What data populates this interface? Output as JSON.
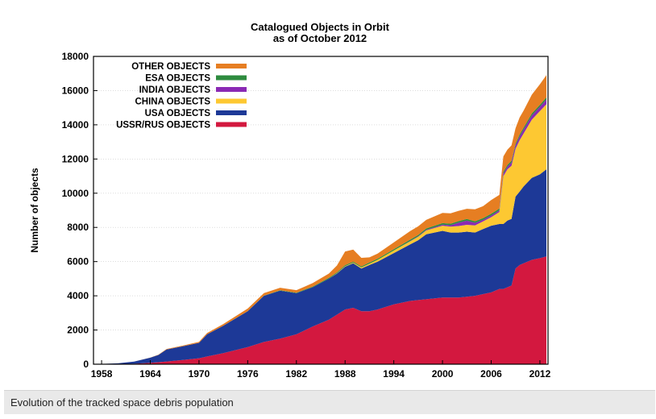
{
  "caption": "Evolution of the tracked space debris population",
  "chart_data": {
    "type": "area",
    "stacked": true,
    "title": "Catalogued Objects in Orbit",
    "subtitle": "as of October 2012",
    "xlabel": "",
    "ylabel": "Number of objects",
    "xlim": [
      1957,
      2013
    ],
    "ylim": [
      0,
      18000
    ],
    "x_ticks": [
      "1958",
      "1964",
      "1970",
      "1976",
      "1982",
      "1988",
      "1994",
      "2000",
      "2006",
      "2012"
    ],
    "y_ticks": [
      "0",
      "2000",
      "4000",
      "6000",
      "8000",
      "10000",
      "12000",
      "14000",
      "16000",
      "18000"
    ],
    "grid": true,
    "legend_position": "top-left",
    "x": [
      1957,
      1960,
      1962,
      1964,
      1965,
      1966,
      1968,
      1970,
      1971,
      1973,
      1976,
      1978,
      1980,
      1982,
      1984,
      1986,
      1987,
      1988,
      1989,
      1990,
      1991,
      1992,
      1994,
      1996,
      1997,
      1998,
      2000,
      2001,
      2002,
      2003,
      2004,
      2005,
      2006,
      2007,
      2007.5,
      2008,
      2008.5,
      2009,
      2009.5,
      2010,
      2011,
      2012,
      2012.8
    ],
    "series": [
      {
        "name": "USSR/RUS OBJECTS",
        "color": "#d3183f",
        "values": [
          0,
          10,
          30,
          80,
          120,
          160,
          250,
          350,
          450,
          650,
          1000,
          1300,
          1500,
          1750,
          2200,
          2600,
          2900,
          3200,
          3300,
          3100,
          3100,
          3200,
          3500,
          3700,
          3750,
          3800,
          3900,
          3900,
          3900,
          3950,
          4000,
          4100,
          4200,
          4400,
          4400,
          4500,
          4600,
          5600,
          5800,
          5900,
          6100,
          6200,
          6300
        ]
      },
      {
        "name": "USA OBJECTS",
        "color": "#1d3997",
        "values": [
          0,
          40,
          120,
          300,
          420,
          700,
          800,
          900,
          1300,
          1600,
          2100,
          2700,
          2800,
          2400,
          2300,
          2400,
          2400,
          2500,
          2600,
          2500,
          2700,
          2800,
          3000,
          3300,
          3500,
          3800,
          3900,
          3800,
          3800,
          3800,
          3700,
          3800,
          3900,
          3800,
          3800,
          3900,
          3900,
          4200,
          4300,
          4500,
          4800,
          4900,
          5100
        ]
      },
      {
        "name": "CHINA OBJECTS",
        "color": "#fdc832",
        "values": [
          0,
          0,
          0,
          0,
          0,
          0,
          0,
          0,
          0,
          0,
          0,
          0,
          0,
          0,
          0,
          0,
          20,
          30,
          40,
          60,
          80,
          100,
          150,
          180,
          200,
          220,
          300,
          350,
          380,
          400,
          420,
          450,
          500,
          700,
          2800,
          3000,
          3100,
          2800,
          3000,
          3100,
          3400,
          3700,
          3800
        ]
      },
      {
        "name": "INDIA OBJECTS",
        "color": "#8a2ab4",
        "values": [
          0,
          0,
          0,
          0,
          0,
          0,
          0,
          0,
          0,
          0,
          0,
          0,
          0,
          0,
          0,
          0,
          0,
          0,
          0,
          0,
          0,
          0,
          0,
          20,
          30,
          40,
          60,
          80,
          200,
          250,
          150,
          100,
          100,
          100,
          150,
          150,
          200,
          200,
          220,
          230,
          250,
          260,
          280
        ]
      },
      {
        "name": "ESA OBJECTS",
        "color": "#2e8b3e",
        "values": [
          0,
          0,
          0,
          0,
          0,
          0,
          0,
          0,
          0,
          0,
          5,
          10,
          20,
          30,
          40,
          50,
          50,
          60,
          60,
          60,
          70,
          70,
          70,
          80,
          80,
          80,
          90,
          90,
          90,
          90,
          90,
          90,
          100,
          100,
          100,
          100,
          100,
          100,
          110,
          110,
          110,
          110,
          120
        ]
      },
      {
        "name": "OTHER OBJECTS",
        "color": "#e67e22",
        "values": [
          0,
          0,
          0,
          10,
          20,
          30,
          40,
          60,
          80,
          100,
          150,
          150,
          150,
          150,
          200,
          250,
          400,
          800,
          700,
          500,
          300,
          300,
          400,
          500,
          500,
          500,
          600,
          600,
          600,
          600,
          700,
          700,
          800,
          800,
          900,
          900,
          900,
          900,
          1000,
          1000,
          1100,
          1200,
          1300
        ]
      }
    ]
  }
}
